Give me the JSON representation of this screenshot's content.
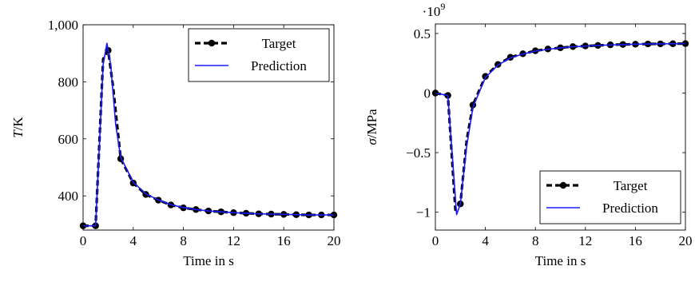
{
  "chart_data": [
    {
      "type": "line",
      "xlabel": "Time in s",
      "ylabel": "T/K",
      "ylabel_italic": "T",
      "ylabel_unit": "/K",
      "xlim": [
        0,
        20
      ],
      "ylim": [
        280,
        1000
      ],
      "xticks": [
        0,
        4,
        8,
        12,
        16,
        20
      ],
      "yticks": [
        400,
        600,
        800,
        1000
      ],
      "ytick_labels": [
        "400",
        "600",
        "800",
        "1,000"
      ],
      "legend": "top-right",
      "series": [
        {
          "name": "Target",
          "style": "dashed-markers",
          "color": "#000000",
          "x": [
            0,
            1,
            1.6,
            2.0,
            2.4,
            3,
            4,
            5,
            6,
            7,
            8,
            9,
            10,
            11,
            12,
            13,
            14,
            15,
            16,
            17,
            18,
            19,
            20
          ],
          "y": [
            295,
            295,
            880,
            910,
            780,
            530,
            445,
            405,
            385,
            368,
            358,
            352,
            347,
            344,
            341,
            339,
            337,
            336,
            335,
            334,
            333,
            333,
            333
          ],
          "markers_x": [
            0,
            1,
            2,
            3,
            4,
            5,
            6,
            7,
            8,
            9,
            10,
            11,
            12,
            13,
            14,
            15,
            16,
            17,
            18,
            19,
            20
          ],
          "markers_y": [
            295,
            295,
            910,
            530,
            445,
            405,
            385,
            368,
            358,
            352,
            347,
            344,
            341,
            339,
            337,
            336,
            335,
            334,
            333,
            333,
            333
          ]
        },
        {
          "name": "Prediction",
          "style": "solid",
          "color": "#1a1aff",
          "x": [
            0,
            1,
            1.6,
            1.9,
            2.2,
            2.6,
            3,
            4,
            5,
            6,
            7,
            8,
            9,
            10,
            11,
            12,
            13,
            14,
            15,
            16,
            17,
            18,
            19,
            20
          ],
          "y": [
            295,
            295,
            860,
            935,
            860,
            650,
            535,
            448,
            407,
            386,
            369,
            359,
            352,
            347,
            344,
            341,
            339,
            337,
            336,
            335,
            334,
            333,
            333,
            333
          ]
        }
      ]
    },
    {
      "type": "line",
      "xlabel": "Time in s",
      "ylabel": "σ/MPa",
      "ylabel_italic": "σ",
      "ylabel_unit": "/MPa",
      "scale_label": "·10",
      "scale_exp": "9",
      "xlim": [
        0,
        20
      ],
      "ylim": [
        -1.15,
        0.58
      ],
      "xticks": [
        0,
        4,
        8,
        12,
        16,
        20
      ],
      "yticks": [
        -1,
        -0.5,
        0,
        0.5
      ],
      "ytick_labels": [
        "−1",
        "−0.5",
        "0",
        "0.5"
      ],
      "legend": "bottom-right",
      "series": [
        {
          "name": "Target",
          "style": "dashed-markers",
          "color": "#000000",
          "x": [
            0,
            1,
            1.6,
            2,
            2.5,
            3,
            4,
            5,
            6,
            7,
            8,
            9,
            10,
            11,
            12,
            13,
            14,
            15,
            16,
            17,
            18,
            19,
            20
          ],
          "y": [
            0,
            -0.02,
            -0.98,
            -0.93,
            -0.4,
            -0.1,
            0.14,
            0.24,
            0.3,
            0.33,
            0.355,
            0.37,
            0.38,
            0.39,
            0.395,
            0.4,
            0.405,
            0.408,
            0.41,
            0.412,
            0.413,
            0.414,
            0.415
          ],
          "markers_x": [
            0,
            1,
            2,
            3,
            4,
            5,
            6,
            7,
            8,
            9,
            10,
            11,
            12,
            13,
            14,
            15,
            16,
            17,
            18,
            19,
            20
          ],
          "markers_y": [
            0,
            -0.02,
            -0.93,
            -0.1,
            0.14,
            0.24,
            0.3,
            0.33,
            0.355,
            0.37,
            0.38,
            0.39,
            0.395,
            0.4,
            0.405,
            0.408,
            0.41,
            0.412,
            0.413,
            0.414,
            0.415
          ]
        },
        {
          "name": "Prediction",
          "style": "solid",
          "color": "#1a1aff",
          "x": [
            0,
            1,
            1.7,
            2,
            2.5,
            3,
            4,
            5,
            6,
            7,
            8,
            9,
            10,
            11,
            12,
            13,
            14,
            15,
            16,
            17,
            18,
            19,
            20
          ],
          "y": [
            0,
            -0.02,
            -1.02,
            -0.93,
            -0.45,
            -0.12,
            0.13,
            0.235,
            0.295,
            0.328,
            0.352,
            0.368,
            0.379,
            0.389,
            0.394,
            0.4,
            0.404,
            0.407,
            0.41,
            0.412,
            0.413,
            0.414,
            0.415
          ]
        }
      ]
    }
  ]
}
